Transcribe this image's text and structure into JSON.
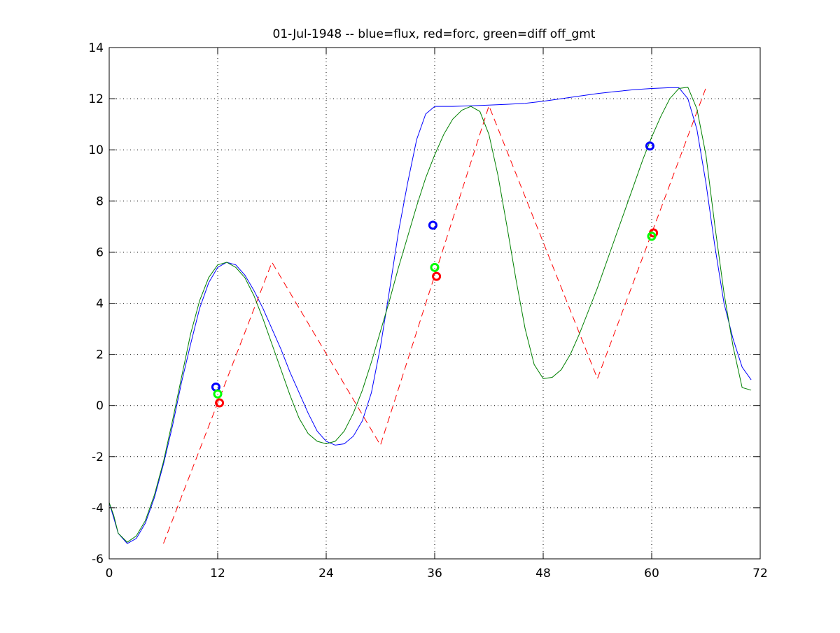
{
  "chart_data": {
    "type": "line",
    "title": "01-Jul-1948 -- blue=flux, red=forc, green=diff off_gmt",
    "xlabel": "",
    "ylabel": "",
    "xlim": [
      0,
      72
    ],
    "ylim": [
      -6,
      14
    ],
    "xticks": [
      0,
      12,
      24,
      36,
      48,
      60,
      72
    ],
    "yticks": [
      -6,
      -4,
      -2,
      0,
      2,
      4,
      6,
      8,
      10,
      12,
      14
    ],
    "grid": true,
    "grid_style": "dotted",
    "series": [
      {
        "color": "#0000ff",
        "style": "solid",
        "x": [
          0,
          0.5,
          1,
          2,
          3,
          4,
          5,
          6,
          7,
          8,
          9,
          10,
          11,
          12,
          13,
          14,
          15,
          16,
          17,
          18,
          19,
          20,
          21,
          22,
          23,
          24,
          25,
          26,
          27,
          28,
          29,
          30,
          31,
          32,
          33,
          34,
          35,
          36,
          37,
          38,
          40,
          42,
          44,
          46,
          48,
          50,
          52,
          54,
          56,
          58,
          60,
          62,
          63,
          64,
          65,
          66,
          67,
          68,
          69,
          70,
          71
        ],
        "y": [
          -3.8,
          -4.4,
          -5.0,
          -5.4,
          -5.2,
          -4.6,
          -3.6,
          -2.3,
          -0.8,
          0.9,
          2.4,
          3.8,
          4.8,
          5.4,
          5.6,
          5.5,
          5.1,
          4.5,
          3.8,
          3.0,
          2.2,
          1.3,
          0.5,
          -0.3,
          -1.0,
          -1.4,
          -1.55,
          -1.5,
          -1.2,
          -0.6,
          0.5,
          2.3,
          4.5,
          6.8,
          8.7,
          10.4,
          11.4,
          11.7,
          11.7,
          11.7,
          11.72,
          11.75,
          11.78,
          11.82,
          11.9,
          12.0,
          12.1,
          12.2,
          12.28,
          12.35,
          12.4,
          12.43,
          12.43,
          12.0,
          10.8,
          8.7,
          6.2,
          4.0,
          2.6,
          1.5,
          1.0
        ]
      },
      {
        "color": "#ff0000",
        "style": "dashed",
        "x": [
          6,
          18,
          30,
          42,
          54,
          66
        ],
        "y": [
          -5.4,
          5.6,
          -1.55,
          11.72,
          1.05,
          12.43
        ]
      },
      {
        "color": "#008000",
        "style": "solid",
        "x": [
          0,
          0.5,
          1,
          2,
          3,
          4,
          5,
          6,
          7,
          8,
          9,
          10,
          11,
          12,
          13,
          14,
          15,
          16,
          17,
          18,
          19,
          20,
          21,
          22,
          23,
          24,
          25,
          26,
          27,
          28,
          29,
          30,
          31,
          32,
          33,
          34,
          35,
          36,
          37,
          38,
          39,
          40,
          41,
          42,
          43,
          44,
          45,
          46,
          47,
          48,
          49,
          50,
          51,
          52,
          53,
          54,
          55,
          56,
          57,
          58,
          59,
          60,
          61,
          62,
          63,
          64,
          65,
          66,
          67,
          68,
          69,
          70,
          71
        ],
        "y": [
          -3.8,
          -4.3,
          -5.0,
          -5.35,
          -5.1,
          -4.5,
          -3.5,
          -2.2,
          -0.6,
          1.1,
          2.8,
          4.1,
          5.0,
          5.5,
          5.6,
          5.4,
          5.0,
          4.3,
          3.4,
          2.4,
          1.4,
          0.4,
          -0.5,
          -1.1,
          -1.4,
          -1.5,
          -1.4,
          -1.0,
          -0.3,
          0.6,
          1.7,
          2.9,
          4.1,
          5.4,
          6.6,
          7.8,
          8.9,
          9.8,
          10.6,
          11.2,
          11.55,
          11.7,
          11.5,
          10.6,
          9.0,
          7.0,
          4.9,
          3.0,
          1.6,
          1.05,
          1.1,
          1.4,
          2.0,
          2.8,
          3.7,
          4.6,
          5.6,
          6.6,
          7.6,
          8.6,
          9.6,
          10.5,
          11.3,
          12.0,
          12.4,
          12.45,
          11.6,
          9.8,
          7.0,
          4.4,
          2.3,
          0.7,
          0.6
        ]
      }
    ],
    "markers": [
      {
        "color": "#0000ff",
        "x": 11.8,
        "y": 0.72
      },
      {
        "color": "#00ff00",
        "x": 12.0,
        "y": 0.45
      },
      {
        "color": "#ff0000",
        "x": 12.2,
        "y": 0.1
      },
      {
        "color": "#0000ff",
        "x": 35.8,
        "y": 7.05
      },
      {
        "color": "#00ff00",
        "x": 36.0,
        "y": 5.4
      },
      {
        "color": "#ff0000",
        "x": 36.2,
        "y": 5.05
      },
      {
        "color": "#0000ff",
        "x": 59.8,
        "y": 10.15
      },
      {
        "color": "#ff0000",
        "x": 60.2,
        "y": 6.75
      },
      {
        "color": "#00ff00",
        "x": 60.0,
        "y": 6.62
      }
    ]
  }
}
